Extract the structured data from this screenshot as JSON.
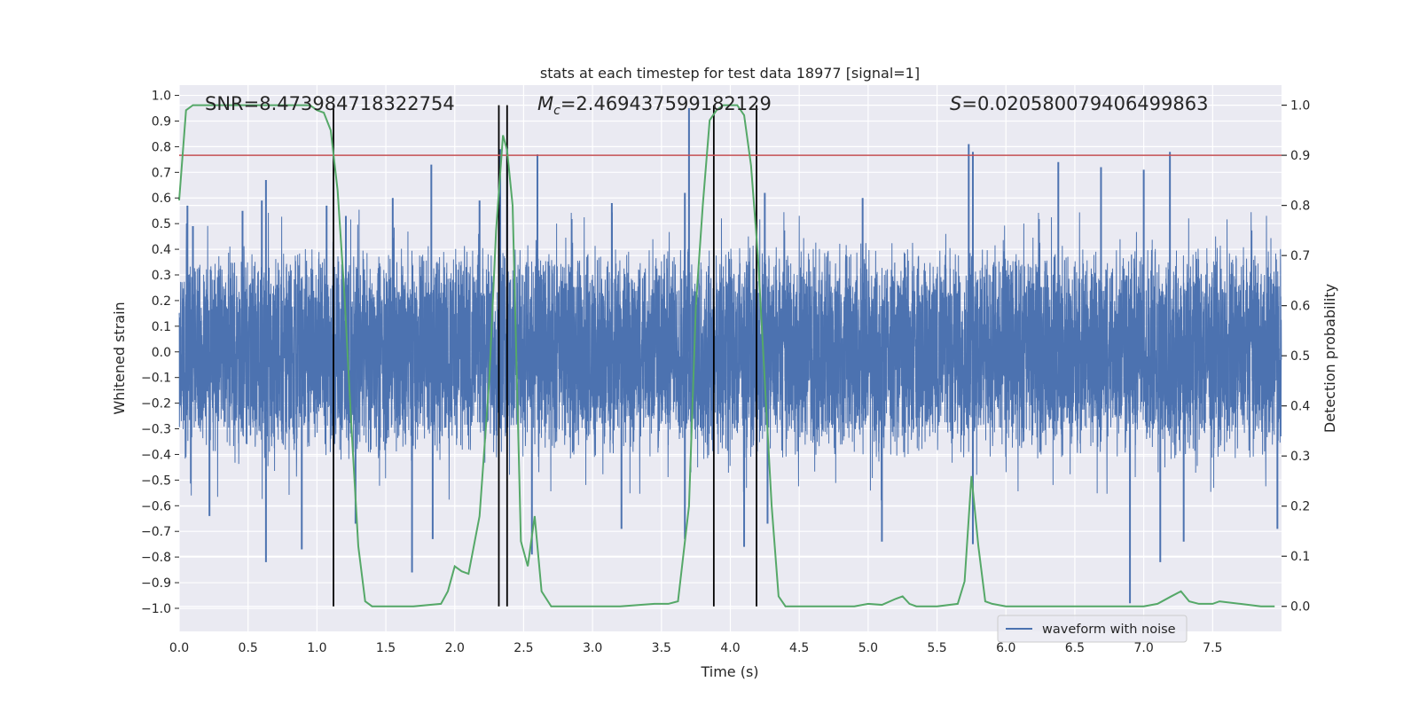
{
  "chart_data": {
    "type": "line",
    "title": "stats at each timestep for test data 18977 [signal=1]",
    "xlabel": "Time (s)",
    "ylabel_left": "Whitened strain",
    "ylabel_right": "Detection probability",
    "xlim": [
      0,
      8
    ],
    "ylim_left": [
      -1.09,
      1.04
    ],
    "ylim_right": [
      -0.05,
      1.04
    ],
    "x_ticks": [
      0.0,
      0.5,
      1.0,
      1.5,
      2.0,
      2.5,
      3.0,
      3.5,
      4.0,
      4.5,
      5.0,
      5.5,
      6.0,
      6.5,
      7.0,
      7.5
    ],
    "x_tick_labels": [
      "0.0",
      "0.5",
      "1.0",
      "1.5",
      "2.0",
      "2.5",
      "3.0",
      "3.5",
      "4.0",
      "4.5",
      "5.0",
      "5.5",
      "6.0",
      "6.5",
      "7.0",
      "7.5"
    ],
    "left_ticks": [
      -1.0,
      -0.9,
      -0.8,
      -0.7,
      -0.6,
      -0.5,
      -0.4,
      -0.3,
      -0.2,
      -0.1,
      0.0,
      0.1,
      0.2,
      0.3,
      0.4,
      0.5,
      0.6,
      0.7,
      0.8,
      0.9,
      1.0
    ],
    "left_tick_labels": [
      "−1.0",
      "−0.9",
      "−0.8",
      "−0.7",
      "−0.6",
      "−0.5",
      "−0.4",
      "−0.3",
      "−0.2",
      "−0.1",
      "0.0",
      "0.1",
      "0.2",
      "0.3",
      "0.4",
      "0.5",
      "0.6",
      "0.7",
      "0.8",
      "0.9",
      "1.0"
    ],
    "right_ticks": [
      0.0,
      0.1,
      0.2,
      0.3,
      0.4,
      0.5,
      0.6,
      0.7,
      0.8,
      0.9,
      1.0
    ],
    "right_tick_labels": [
      "0.0",
      "0.1",
      "0.2",
      "0.3",
      "0.4",
      "0.5",
      "0.6",
      "0.7",
      "0.8",
      "0.9",
      "1.0"
    ],
    "annotations": {
      "snr": "SNR=8.473984718322754",
      "mc_symbol": "M",
      "mc_subscript": "c",
      "mc_value": "=2.469437599182129",
      "s_symbol": "S",
      "s_value": "=0.020580079406499863"
    },
    "legend": {
      "placement": "lower-right",
      "entries": [
        "waveform with noise"
      ]
    },
    "grid": true,
    "threshold": {
      "value": 0.9,
      "color": "#c44e52"
    },
    "vertical_markers": [
      1.12,
      2.32,
      2.38,
      3.88,
      4.19
    ],
    "waveform": {
      "name": "waveform with noise",
      "color": "#4c72b0",
      "n_samples": 8192,
      "core_amplitude": 0.33,
      "peaks": [
        {
          "t": 0.06,
          "v": 0.57
        },
        {
          "t": 0.1,
          "v": 0.49
        },
        {
          "t": 0.46,
          "v": 0.55
        },
        {
          "t": 0.63,
          "v": 0.67
        },
        {
          "t": 0.6,
          "v": 0.59
        },
        {
          "t": 1.07,
          "v": 0.57
        },
        {
          "t": 1.21,
          "v": 0.53
        },
        {
          "t": 1.55,
          "v": 0.6
        },
        {
          "t": 1.83,
          "v": 0.73
        },
        {
          "t": 2.18,
          "v": 0.59
        },
        {
          "t": 2.33,
          "v": 0.79
        },
        {
          "t": 2.38,
          "v": 0.8
        },
        {
          "t": 2.6,
          "v": 0.77
        },
        {
          "t": 3.14,
          "v": 0.58
        },
        {
          "t": 3.7,
          "v": 0.95
        },
        {
          "t": 3.67,
          "v": 0.62
        },
        {
          "t": 4.25,
          "v": 0.62
        },
        {
          "t": 4.96,
          "v": 0.6
        },
        {
          "t": 5.73,
          "v": 0.81
        },
        {
          "t": 5.76,
          "v": 0.78
        },
        {
          "t": 6.38,
          "v": 0.74
        },
        {
          "t": 6.69,
          "v": 0.72
        },
        {
          "t": 7.19,
          "v": 0.78
        },
        {
          "t": 7.0,
          "v": 0.71
        },
        {
          "t": 0.22,
          "v": -0.64
        },
        {
          "t": 0.63,
          "v": -0.82
        },
        {
          "t": 0.89,
          "v": -0.77
        },
        {
          "t": 1.28,
          "v": -0.67
        },
        {
          "t": 1.69,
          "v": -0.86
        },
        {
          "t": 1.84,
          "v": -0.73
        },
        {
          "t": 2.56,
          "v": -0.79
        },
        {
          "t": 3.21,
          "v": -0.69
        },
        {
          "t": 3.67,
          "v": -0.73
        },
        {
          "t": 4.1,
          "v": -0.76
        },
        {
          "t": 4.27,
          "v": -0.67
        },
        {
          "t": 5.1,
          "v": -0.74
        },
        {
          "t": 5.76,
          "v": -0.75
        },
        {
          "t": 6.9,
          "v": -0.98
        },
        {
          "t": 7.12,
          "v": -0.82
        },
        {
          "t": 7.29,
          "v": -0.74
        },
        {
          "t": 7.97,
          "v": -0.69
        }
      ]
    },
    "probability": {
      "name": "detection probability",
      "color": "#55a868",
      "x": [
        0.0,
        0.05,
        0.1,
        0.2,
        0.4,
        0.6,
        0.8,
        0.95,
        1.0,
        1.05,
        1.1,
        1.15,
        1.2,
        1.25,
        1.3,
        1.35,
        1.4,
        1.5,
        1.7,
        1.9,
        1.95,
        2.0,
        2.05,
        2.1,
        2.18,
        2.25,
        2.3,
        2.35,
        2.38,
        2.42,
        2.48,
        2.53,
        2.58,
        2.63,
        2.7,
        2.75,
        2.9,
        3.2,
        3.45,
        3.55,
        3.62,
        3.7,
        3.75,
        3.8,
        3.85,
        3.9,
        3.95,
        4.0,
        4.05,
        4.1,
        4.15,
        4.2,
        4.25,
        4.3,
        4.35,
        4.4,
        4.5,
        4.7,
        4.9,
        5.0,
        5.1,
        5.2,
        5.25,
        5.3,
        5.35,
        5.5,
        5.65,
        5.7,
        5.75,
        5.8,
        5.85,
        5.9,
        6.0,
        6.3,
        6.5,
        6.7,
        7.0,
        7.1,
        7.2,
        7.27,
        7.33,
        7.4,
        7.5,
        7.55,
        7.7,
        7.85,
        7.95
      ],
      "y": [
        0.81,
        0.99,
        1.0,
        1.0,
        1.0,
        1.0,
        1.0,
        1.0,
        0.99,
        0.985,
        0.95,
        0.83,
        0.62,
        0.36,
        0.12,
        0.01,
        0.0,
        0.0,
        0.0,
        0.005,
        0.03,
        0.08,
        0.07,
        0.065,
        0.18,
        0.45,
        0.75,
        0.94,
        0.91,
        0.8,
        0.13,
        0.08,
        0.18,
        0.03,
        0.0,
        0.0,
        0.0,
        0.0,
        0.005,
        0.005,
        0.01,
        0.2,
        0.6,
        0.8,
        0.97,
        0.99,
        1.0,
        1.0,
        1.0,
        0.98,
        0.88,
        0.7,
        0.45,
        0.2,
        0.02,
        0.0,
        0.0,
        0.0,
        0.0,
        0.005,
        0.003,
        0.015,
        0.02,
        0.005,
        0.0,
        0.0,
        0.005,
        0.05,
        0.26,
        0.12,
        0.01,
        0.005,
        0.0,
        0.0,
        0.0,
        0.0,
        0.0,
        0.005,
        0.02,
        0.03,
        0.01,
        0.005,
        0.005,
        0.01,
        0.005,
        0.0,
        0.0
      ]
    }
  }
}
